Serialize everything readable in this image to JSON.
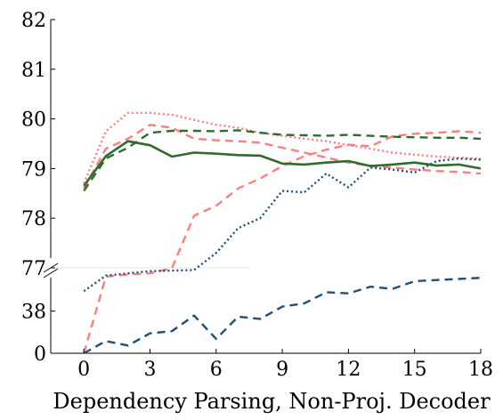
{
  "chart_data": {
    "type": "line",
    "xlabel": "Dependency Parsing, Non-Proj. Decoder",
    "ylabel": "",
    "x": [
      0,
      1,
      2,
      3,
      4,
      5,
      6,
      7,
      8,
      9,
      10,
      11,
      12,
      13,
      14,
      15,
      16,
      17,
      18
    ],
    "xlim": [
      -1.5,
      18
    ],
    "x_ticks": [
      0,
      3,
      6,
      9,
      12,
      15,
      18
    ],
    "y_upper_range": [
      77,
      82
    ],
    "y_upper_ticks": [
      77,
      78,
      79,
      80,
      81,
      82
    ],
    "y_lower_range": [
      0,
      77
    ],
    "y_lower_ticks": [
      0,
      38,
      77
    ],
    "axis_break_between": [
      38,
      77
    ],
    "grid": false,
    "legend": "none",
    "series": [
      {
        "color": "#ff7f7f",
        "style": "dotted",
        "values": [
          78.7,
          79.75,
          80.12,
          80.12,
          80.08,
          79.98,
          79.88,
          79.82,
          79.72,
          79.66,
          79.6,
          79.55,
          79.47,
          79.4,
          79.32,
          79.28,
          79.24,
          79.22,
          79.2
        ]
      },
      {
        "color": "#ff7f7f",
        "style": "dashed",
        "values": [
          78.6,
          79.4,
          79.6,
          79.88,
          79.82,
          79.6,
          79.57,
          79.55,
          79.52,
          79.42,
          79.32,
          79.22,
          79.12,
          79.05,
          79.02,
          78.98,
          78.95,
          78.93,
          78.9
        ]
      },
      {
        "color": "#ff7f7f",
        "style": "dashed",
        "values": [
          0,
          69,
          71,
          72,
          76.8,
          78.05,
          78.25,
          78.6,
          78.8,
          79.05,
          79.25,
          79.38,
          79.48,
          79.45,
          79.65,
          79.7,
          79.72,
          79.75,
          79.72
        ]
      },
      {
        "color": "#2e6b2e",
        "style": "dashed",
        "values": [
          78.55,
          79.2,
          79.42,
          79.72,
          79.76,
          79.76,
          79.75,
          79.77,
          79.72,
          79.68,
          79.67,
          79.66,
          79.68,
          79.66,
          79.64,
          79.63,
          79.62,
          79.62,
          79.6
        ]
      },
      {
        "color": "#2e6b2e",
        "style": "solid",
        "values": [
          78.65,
          79.25,
          79.55,
          79.47,
          79.24,
          79.32,
          79.3,
          79.27,
          79.26,
          79.1,
          79.08,
          79.12,
          79.15,
          79.05,
          79.08,
          79.12,
          79.06,
          79.08,
          79.0
        ]
      },
      {
        "color": "#1f4e79",
        "style": "dotted",
        "values": [
          56,
          70,
          72,
          74,
          74.5,
          75,
          77.3,
          77.8,
          78.0,
          78.55,
          78.52,
          78.9,
          78.62,
          79.02,
          78.98,
          78.92,
          79.15,
          79.2,
          79.18
        ]
      },
      {
        "color": "#1f4e79",
        "style": "dashed",
        "values": [
          0,
          11,
          7,
          18,
          20,
          34,
          13,
          33,
          31,
          42,
          45,
          55,
          54,
          60,
          58,
          65,
          66,
          67,
          68
        ]
      }
    ]
  }
}
